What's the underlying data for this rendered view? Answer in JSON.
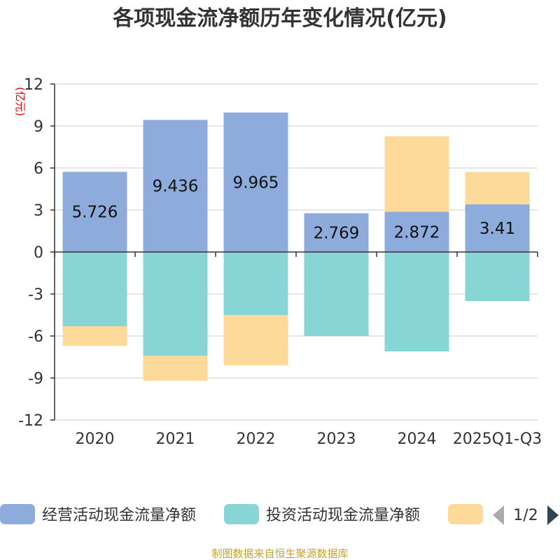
{
  "chart_data": {
    "type": "bar",
    "stacked": true,
    "title": "各项现金流净额历年变化情况(亿元)",
    "ylabel": "(亿元)",
    "ylim": [
      -12,
      12
    ],
    "yticks": [
      12,
      9,
      6,
      3,
      0,
      -3,
      -6,
      -9,
      -12
    ],
    "categories": [
      "2020",
      "2021",
      "2022",
      "2023",
      "2024",
      "2025Q1-Q3"
    ],
    "series": [
      {
        "name": "经营活动现金流量净额",
        "color": "#8eacdb",
        "values": [
          5.726,
          9.436,
          9.965,
          2.769,
          2.872,
          3.41
        ],
        "labels": [
          "5.726",
          "9.436",
          "9.965",
          "2.769",
          "2.872",
          "3.41"
        ]
      },
      {
        "name": "投资活动现金流量净额",
        "color": "#88d5d6",
        "values": [
          -5.3,
          -7.4,
          -4.5,
          -6.0,
          -7.1,
          -3.5
        ]
      },
      {
        "name": "",
        "color": "#fdd99a",
        "values": [
          -1.4,
          -1.8,
          -3.6,
          0,
          5.4,
          2.3
        ]
      }
    ],
    "legend": {
      "position": "bottom",
      "page": "1/2"
    },
    "grid": true
  },
  "source": "制图数据来自恒生聚源数据库"
}
